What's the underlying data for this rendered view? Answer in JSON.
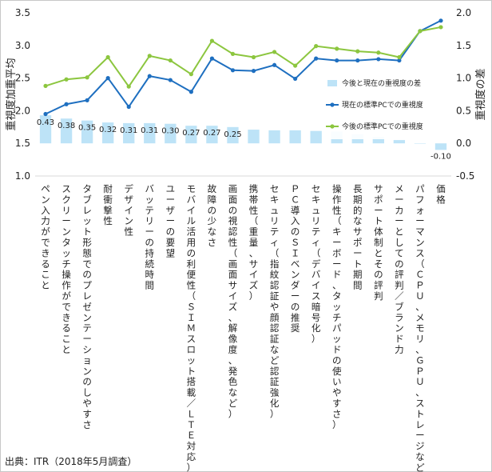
{
  "source": "出典：ITR（2018年5月調査）",
  "chart_data": {
    "type": "bar",
    "title": "",
    "ylabel_left": "重視度加重平均",
    "ylabel_right": "重視度の差",
    "ylim_left": [
      1.0,
      3.5
    ],
    "ylim_right": [
      -0.5,
      2.0
    ],
    "yticks_left": [
      "1.0",
      "1.5",
      "2.0",
      "2.5",
      "3.0",
      "3.5"
    ],
    "yticks_right": [
      "-0.5",
      "0.0",
      "0.5",
      "1.0",
      "1.5",
      "2.0"
    ],
    "legend_position": "right, mid-height inside plot",
    "categories": [
      "ペン入力ができること",
      "スクリーンタッチ操作ができること",
      "タブレット形態でのプレゼンテーションのしやすさ",
      "耐衝撃性",
      "デザイン性",
      "バッテリーの持続時間",
      "ユーザーの要望",
      "モバイル活用の利便性（ＳＩＭスロット搭載／ＬＴＥ対応）",
      "故障の少なさ",
      "画面の視認性（画面サイズ、解像度、発色など）",
      "携帯性（重量、サイズ）",
      "セキュリティ（指紋認証や顔認証など認証強化）",
      "ＰＣ導入のＳＩベンダーの推奨",
      "セキュリティ（デバイス暗号化）",
      "操作性（キーボード、タッチパッドの使いやすさ）",
      "長期的なサポート期間",
      "サポート体制とその評判",
      "メーカーとしての評判／ブランド力",
      "パフォーマンス（ＣＰＵ、メモリ、ＧＰＵ、ストレージなど）",
      "価格"
    ],
    "series": [
      {
        "name": "今後と現在の重視度の差",
        "kind": "bar",
        "axis": "right",
        "color": "#bde3f7",
        "values": [
          0.43,
          0.38,
          0.35,
          0.32,
          0.31,
          0.31,
          0.3,
          0.27,
          0.27,
          0.25,
          0.21,
          0.2,
          0.2,
          0.19,
          0.18,
          0.14,
          0.1,
          0.05,
          0.0,
          -0.1
        ],
        "labels": [
          "0.43",
          "0.38",
          "0.35",
          "0.32",
          "0.31",
          "0.31",
          "0.30",
          "0.27",
          "0.27",
          "0.25",
          "",
          "",
          "",
          "",
          "",
          "",
          "",
          "",
          "",
          "-0.10"
        ]
      },
      {
        "name": "現在の標準PCでの重視度",
        "kind": "line",
        "axis": "left",
        "color": "#1e6fc0",
        "values": [
          1.95,
          2.1,
          2.16,
          2.5,
          2.06,
          2.53,
          2.47,
          2.29,
          2.8,
          2.62,
          2.61,
          2.7,
          2.49,
          2.8,
          2.77,
          2.77,
          2.79,
          2.77,
          3.22,
          3.38
        ]
      },
      {
        "name": "今後の標準PCでの重視度",
        "kind": "line",
        "axis": "left",
        "color": "#8cc63f",
        "values": [
          2.38,
          2.48,
          2.51,
          2.82,
          2.37,
          2.84,
          2.77,
          2.56,
          3.07,
          2.87,
          2.82,
          2.9,
          2.69,
          2.99,
          2.95,
          2.91,
          2.89,
          2.82,
          3.22,
          3.28
        ]
      }
    ]
  }
}
